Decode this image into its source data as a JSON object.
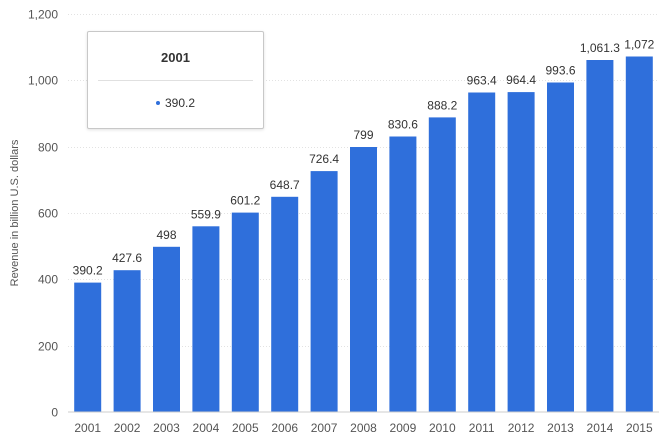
{
  "chart_data": {
    "type": "bar",
    "ylabel": "Revenue in billion U.S. dollars",
    "ylim": [
      0,
      1200
    ],
    "y_ticks": [
      "0",
      "200",
      "400",
      "600",
      "800",
      "1,000",
      "1,200"
    ],
    "y_tick_values": [
      0,
      200,
      400,
      600,
      800,
      1000,
      1200
    ],
    "categories": [
      "2001",
      "2002",
      "2003",
      "2004",
      "2005",
      "2006",
      "2007",
      "2008",
      "2009",
      "2010",
      "2011",
      "2012",
      "2013",
      "2014",
      "2015"
    ],
    "values": [
      390.2,
      427.6,
      498,
      559.9,
      601.2,
      648.7,
      726.4,
      799,
      830.6,
      888.2,
      963.4,
      964.4,
      993.6,
      1061.3,
      1072
    ],
    "value_labels": [
      "390.2",
      "427.6",
      "498",
      "559.9",
      "601.2",
      "648.7",
      "726.4",
      "799",
      "830.6",
      "888.2",
      "963.4",
      "964.4",
      "993.6",
      "1,061.3",
      "1,072"
    ],
    "grid": true,
    "bar_color": "#2f6fdb"
  },
  "tooltip": {
    "title": "2001",
    "value": "390.2"
  }
}
